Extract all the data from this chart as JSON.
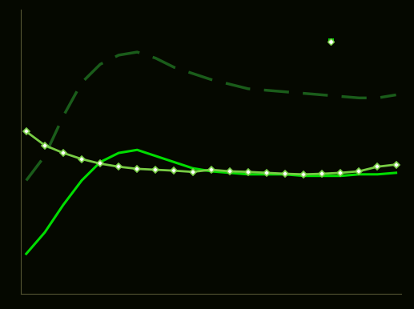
{
  "background_color": "#050800",
  "plot_bg_color": "#050800",
  "line1_color": "#00dd00",
  "line2_color": "#1a5c1a",
  "line3_color": "#77cc44",
  "x": [
    0,
    1,
    2,
    3,
    4,
    5,
    6,
    7,
    8,
    9,
    10,
    11,
    12,
    13,
    14,
    15,
    16,
    17,
    18,
    19,
    20
  ],
  "line1_y": [
    2.8,
    3.5,
    4.4,
    5.2,
    5.8,
    6.1,
    6.2,
    6.0,
    5.8,
    5.6,
    5.5,
    5.45,
    5.4,
    5.4,
    5.4,
    5.35,
    5.35,
    5.35,
    5.4,
    5.4,
    5.45
  ],
  "line2_y": [
    5.2,
    6.0,
    7.3,
    8.4,
    9.0,
    9.3,
    9.4,
    9.2,
    8.9,
    8.7,
    8.5,
    8.35,
    8.2,
    8.15,
    8.1,
    8.05,
    8.0,
    7.95,
    7.9,
    7.9,
    8.0
  ],
  "line3_y": [
    6.8,
    6.35,
    6.1,
    5.9,
    5.75,
    5.65,
    5.58,
    5.55,
    5.52,
    5.48,
    5.55,
    5.5,
    5.48,
    5.45,
    5.42,
    5.4,
    5.42,
    5.45,
    5.5,
    5.65,
    5.72
  ],
  "ylim": [
    1.5,
    10.8
  ],
  "xlim": [
    -0.3,
    20.3
  ],
  "spine_color": "#555533",
  "legend_line1_color": "#00dd00",
  "legend_line2_color": "#1a5c1a",
  "legend_line3_color": "#77cc44"
}
